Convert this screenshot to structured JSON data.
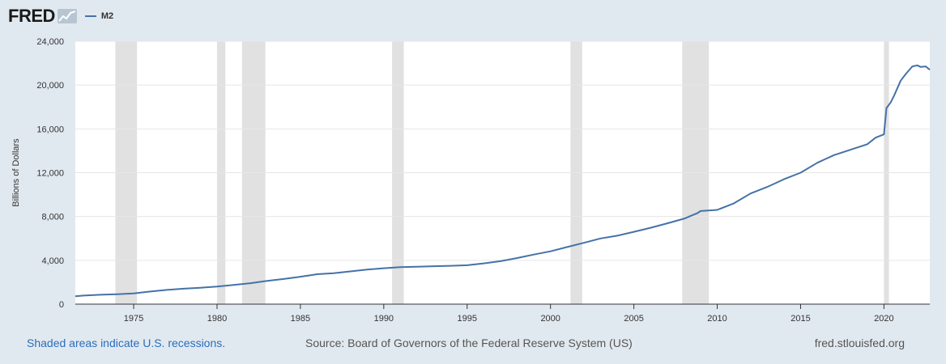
{
  "header": {
    "logo": "FRED",
    "logo_icon": "line-chart-icon",
    "legend_label": "M2"
  },
  "colors": {
    "series": "#4572a7",
    "recession": "#e1e1e1",
    "background": "#e1e9f0",
    "plot_bg": "#ffffff",
    "link": "#2a6ebb"
  },
  "footer": {
    "recession_note": "Shaded areas indicate U.S. recessions.",
    "source": "Source: Board of Governors of the Federal Reserve System (US)",
    "site": "fred.stlouisfed.org"
  },
  "chart_data": {
    "type": "line",
    "title": "",
    "xlabel": "",
    "ylabel": "Billions of Dollars",
    "xlim": [
      1971.5,
      2022.75
    ],
    "ylim": [
      0,
      24000
    ],
    "yticks": [
      0,
      4000,
      8000,
      12000,
      16000,
      20000,
      24000
    ],
    "ytick_labels": [
      "0",
      "4,000",
      "8,000",
      "12,000",
      "16,000",
      "20,000",
      "24,000"
    ],
    "xticks": [
      1975,
      1980,
      1985,
      1990,
      1995,
      2000,
      2005,
      2010,
      2015,
      2020
    ],
    "xtick_labels": [
      "1975",
      "1980",
      "1985",
      "1990",
      "1995",
      "2000",
      "2005",
      "2010",
      "2015",
      "2020"
    ],
    "recessions": [
      [
        1973.9,
        1975.2
      ],
      [
        1980.0,
        1980.5
      ],
      [
        1981.5,
        1982.9
      ],
      [
        1990.5,
        1991.2
      ],
      [
        2001.2,
        2001.9
      ],
      [
        2007.9,
        2009.5
      ],
      [
        2020.0,
        2020.3
      ]
    ],
    "series": [
      {
        "name": "M2",
        "x": [
          1971.5,
          1972,
          1973,
          1974,
          1975,
          1976,
          1977,
          1978,
          1979,
          1980,
          1981,
          1982,
          1983,
          1984,
          1985,
          1986,
          1987,
          1988,
          1989,
          1990,
          1991,
          1992,
          1993,
          1994,
          1995,
          1996,
          1997,
          1998,
          1999,
          2000,
          2001,
          2002,
          2003,
          2004,
          2005,
          2006,
          2007,
          2008,
          2008.8,
          2009,
          2010,
          2011,
          2012,
          2013,
          2014,
          2015,
          2016,
          2017,
          2018,
          2019,
          2019.5,
          2020,
          2020.15,
          2020.4,
          2020.6,
          2021,
          2021.3,
          2021.7,
          2022,
          2022.2,
          2022.5,
          2022.75
        ],
        "values": [
          720,
          780,
          860,
          910,
          980,
          1150,
          1300,
          1410,
          1500,
          1600,
          1760,
          1910,
          2130,
          2300,
          2500,
          2730,
          2830,
          2990,
          3150,
          3280,
          3380,
          3420,
          3460,
          3500,
          3550,
          3720,
          3920,
          4210,
          4530,
          4820,
          5210,
          5600,
          6000,
          6250,
          6600,
          6970,
          7380,
          7800,
          8300,
          8500,
          8600,
          9200,
          10100,
          10700,
          11400,
          12000,
          12900,
          13600,
          14100,
          14600,
          15200,
          15500,
          17900,
          18400,
          19000,
          20400,
          21000,
          21700,
          21800,
          21650,
          21700,
          21400
        ]
      }
    ]
  }
}
